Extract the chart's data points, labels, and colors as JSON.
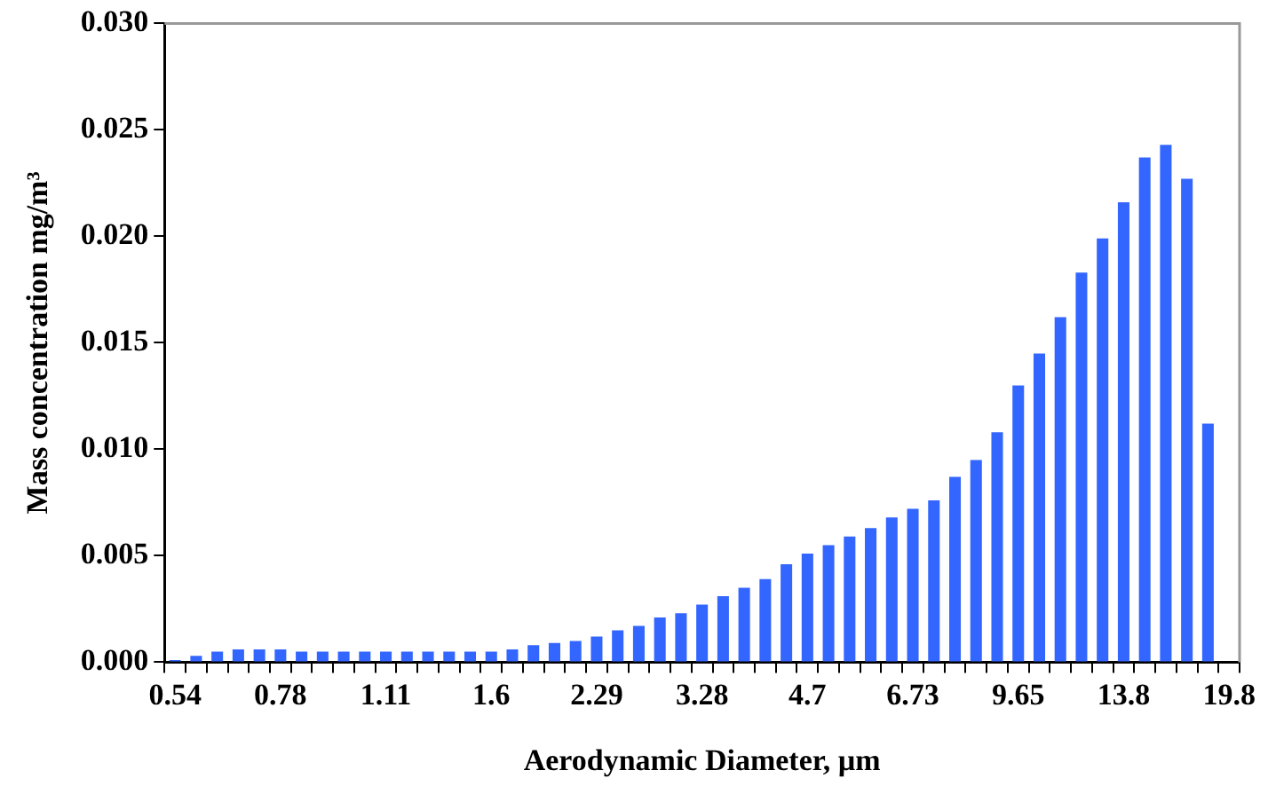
{
  "chart_data": {
    "type": "bar",
    "xlabel": "Aerodynamic Diameter, µm",
    "ylabel": "Mass concentration mg/m³",
    "categories": [
      "0.54",
      null,
      null,
      null,
      null,
      "0.78",
      null,
      null,
      null,
      null,
      "1.11",
      null,
      null,
      null,
      null,
      "1.6",
      null,
      null,
      null,
      null,
      "2.29",
      null,
      null,
      null,
      null,
      "3.28",
      null,
      null,
      null,
      null,
      "4.7",
      null,
      null,
      null,
      null,
      "6.73",
      null,
      null,
      null,
      null,
      "9.65",
      null,
      null,
      null,
      null,
      "13.8",
      null,
      null,
      null,
      null,
      "19.8"
    ],
    "values": [
      0.0001,
      0.0003,
      0.0005,
      0.0006,
      0.0006,
      0.0006,
      0.0005,
      0.0005,
      0.0005,
      0.0005,
      0.0005,
      0.0005,
      0.0005,
      0.0005,
      0.0005,
      0.0005,
      0.0006,
      0.0008,
      0.0009,
      0.001,
      0.0012,
      0.0015,
      0.0017,
      0.0021,
      0.0023,
      0.0027,
      0.0031,
      0.0035,
      0.0039,
      0.0046,
      0.0051,
      0.0055,
      0.0059,
      0.0063,
      0.0068,
      0.0072,
      0.0076,
      0.0087,
      0.0095,
      0.0108,
      0.013,
      0.0145,
      0.0162,
      0.0183,
      0.0199,
      0.0216,
      0.0237,
      0.0243,
      0.0227,
      0.0112,
      null
    ],
    "color": "#3366ff",
    "ylim": [
      0,
      0.03
    ],
    "yticks": [
      {
        "value": 0,
        "label": "0.000"
      },
      {
        "value": 0.005,
        "label": "0.005"
      },
      {
        "value": 0.01,
        "label": "0.010"
      },
      {
        "value": 0.015,
        "label": "0.015"
      },
      {
        "value": 0.02,
        "label": "0.020"
      },
      {
        "value": 0.025,
        "label": "0.025"
      },
      {
        "value": 0.03,
        "label": "0.030"
      }
    ],
    "grid": false,
    "legend": false
  }
}
